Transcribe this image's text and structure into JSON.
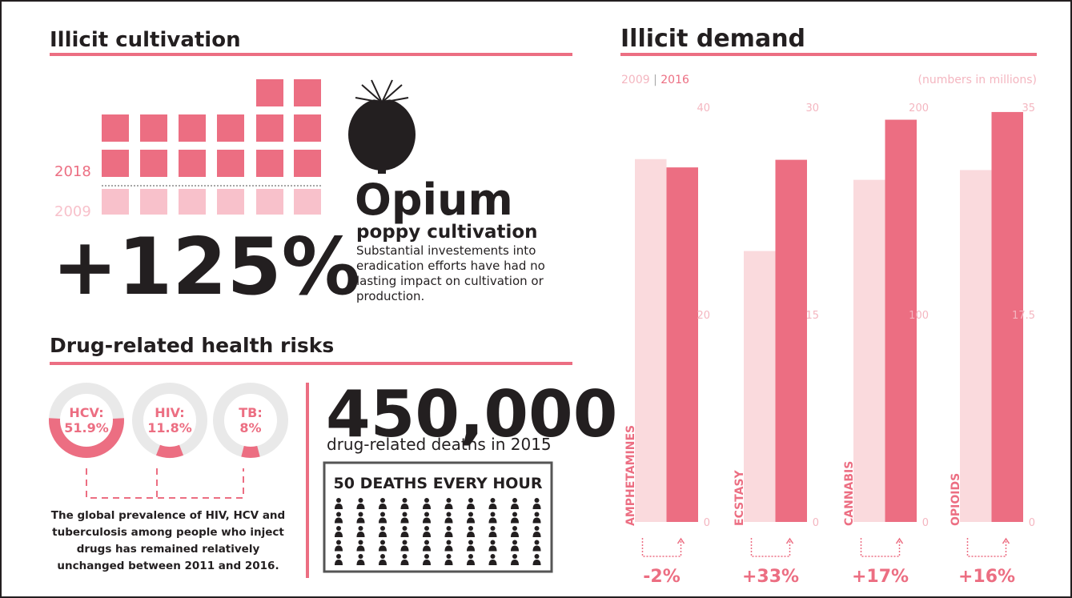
{
  "cultivation": {
    "title": "Illicit cultivation",
    "years": [
      {
        "label": "2018",
        "squares": 14
      },
      {
        "label": "2009",
        "squares": 6
      }
    ],
    "change": "+125%",
    "heading": "Opium",
    "subheading": "poppy cultivation",
    "description": [
      "Substantial investements into",
      "eradication efforts have had no",
      "lasting impact on cultivation or",
      "production."
    ]
  },
  "health": {
    "title": "Drug-related health risks",
    "rates": [
      {
        "label": "HCV:",
        "value": 51.9,
        "value_label": "51.9%"
      },
      {
        "label": "HIV:",
        "value": 11.8,
        "value_label": "11.8%"
      },
      {
        "label": "TB:",
        "value": 8,
        "value_label": "8%"
      }
    ],
    "note": [
      "The global prevalence of HIV, HCV and",
      "tuberculosis among people who inject",
      "drugs has remained relatively",
      "unchanged between 2011 and 2016."
    ],
    "deaths": "450,000",
    "deaths_caption": "drug-related deaths in 2015",
    "rate_caption": "50 DEATHS EVERY HOUR"
  },
  "demand": {
    "title": "Illicit demand",
    "note": "(numbers in millions)"
  },
  "chart_data": [
    {
      "type": "bar",
      "title": "AMPHETAMINES",
      "annotation": "-2%",
      "ylim": [
        0,
        40
      ],
      "yticks": [
        0,
        20,
        40
      ],
      "series": [
        {
          "name": "2009",
          "color": "#fadadd",
          "values": [
            35
          ]
        },
        {
          "name": "2016",
          "color": "#ec6e82",
          "values": [
            34.2
          ]
        }
      ]
    },
    {
      "type": "bar",
      "title": "ECSTASY",
      "annotation": "+33%",
      "ylim": [
        0,
        30
      ],
      "yticks": [
        0,
        15,
        30
      ],
      "series": [
        {
          "color": "#fadadd",
          "values": [
            19.6
          ]
        },
        {
          "color": "#ec6e82",
          "values": [
            26.2
          ]
        }
      ]
    },
    {
      "type": "bar",
      "title": "CANNABIS",
      "annotation": "+17%",
      "ylim": [
        0,
        200
      ],
      "yticks": [
        0,
        100,
        200
      ],
      "series": [
        {
          "color": "#fadadd",
          "values": [
            165
          ]
        },
        {
          "color": "#ec6e82",
          "values": [
            194
          ]
        }
      ]
    },
    {
      "type": "bar",
      "title": "OPIOIDS",
      "annotation": "+16%",
      "ylim": [
        0,
        35
      ],
      "yticks": [
        0,
        17.5,
        35
      ],
      "series": [
        {
          "color": "#fadadd",
          "values": [
            29.7
          ]
        },
        {
          "color": "#ec6e82",
          "values": [
            34.6
          ]
        }
      ]
    }
  ]
}
